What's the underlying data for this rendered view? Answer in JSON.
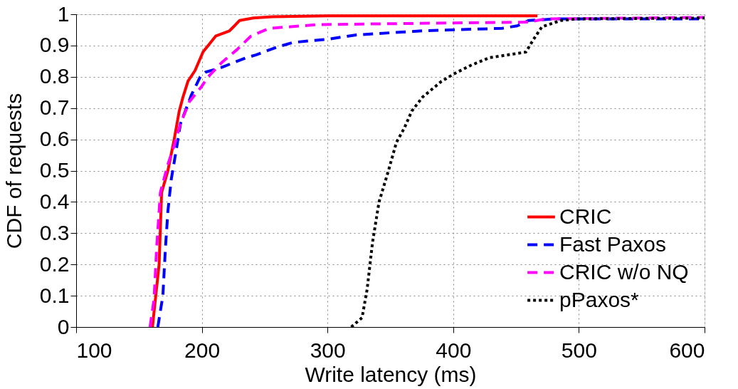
{
  "chart_data": {
    "type": "line",
    "xlabel": "Write latency (ms)",
    "ylabel": "CDF of requests",
    "xlim": [
      100,
      600
    ],
    "ylim": [
      0,
      1
    ],
    "xticks": [
      100,
      200,
      300,
      400,
      500,
      600
    ],
    "yticks": [
      0,
      0.1,
      0.2,
      0.3,
      0.4,
      0.5,
      0.6,
      0.7,
      0.8,
      0.9,
      1
    ],
    "grid": true,
    "legend": "bottom right",
    "marker": "none",
    "series": [
      {
        "name": "CRIC",
        "color": "#ff0000",
        "line_style": "solid",
        "x": [
          160.7,
          166,
          168,
          173,
          178,
          182,
          185,
          189,
          194.6,
          201,
          205,
          211,
          222,
          226,
          230,
          241,
          256,
          300,
          400,
          467
        ],
        "values": [
          0,
          0.2,
          0.43,
          0.5,
          0.6,
          0.69,
          0.735,
          0.786,
          0.82,
          0.88,
          0.9,
          0.93,
          0.947,
          0.963,
          0.98,
          0.988,
          0.992,
          0.995,
          0.995,
          0.995
        ]
      },
      {
        "name": "Fast Paxos",
        "color": "#0000ff",
        "line_style": "dashed",
        "x": [
          165,
          169,
          171,
          173,
          175.6,
          179.8,
          183,
          191.5,
          198.7,
          203,
          215.7,
          234.6,
          243,
          260,
          272.6,
          300,
          323,
          375.6,
          439,
          451,
          460,
          481,
          600
        ],
        "values": [
          0,
          0.1,
          0.25,
          0.37,
          0.47,
          0.57,
          0.65,
          0.74,
          0.8,
          0.815,
          0.83,
          0.86,
          0.87,
          0.895,
          0.91,
          0.92,
          0.934,
          0.947,
          0.955,
          0.963,
          0.98,
          0.985,
          0.985
        ]
      },
      {
        "name": "CRIC w/o NQ",
        "color": "#ff00ff",
        "line_style": "dashed",
        "x": [
          158.8,
          162,
          164,
          167,
          173,
          178,
          183,
          190,
          200,
          205,
          215.7,
          228,
          239,
          253.6,
          293,
          397,
          460,
          473,
          600
        ],
        "values": [
          0,
          0.09,
          0.25,
          0.43,
          0.52,
          0.58,
          0.65,
          0.72,
          0.77,
          0.8,
          0.845,
          0.887,
          0.93,
          0.955,
          0.967,
          0.972,
          0.975,
          0.985,
          0.99
        ]
      },
      {
        "name": "pPaxos*",
        "color": "#000000",
        "line_style": "dotted",
        "x": [
          318.9,
          327.5,
          331.5,
          335.8,
          341,
          348.5,
          354.8,
          361,
          367,
          375.6,
          390.5,
          400.9,
          413.7,
          428.7,
          457.8,
          464,
          470.6,
          485.5,
          498,
          600
        ],
        "values": [
          0,
          0.03,
          0.12,
          0.27,
          0.4,
          0.5,
          0.59,
          0.635,
          0.69,
          0.735,
          0.785,
          0.81,
          0.836,
          0.861,
          0.879,
          0.92,
          0.96,
          0.98,
          0.985,
          0.988
        ]
      }
    ]
  }
}
